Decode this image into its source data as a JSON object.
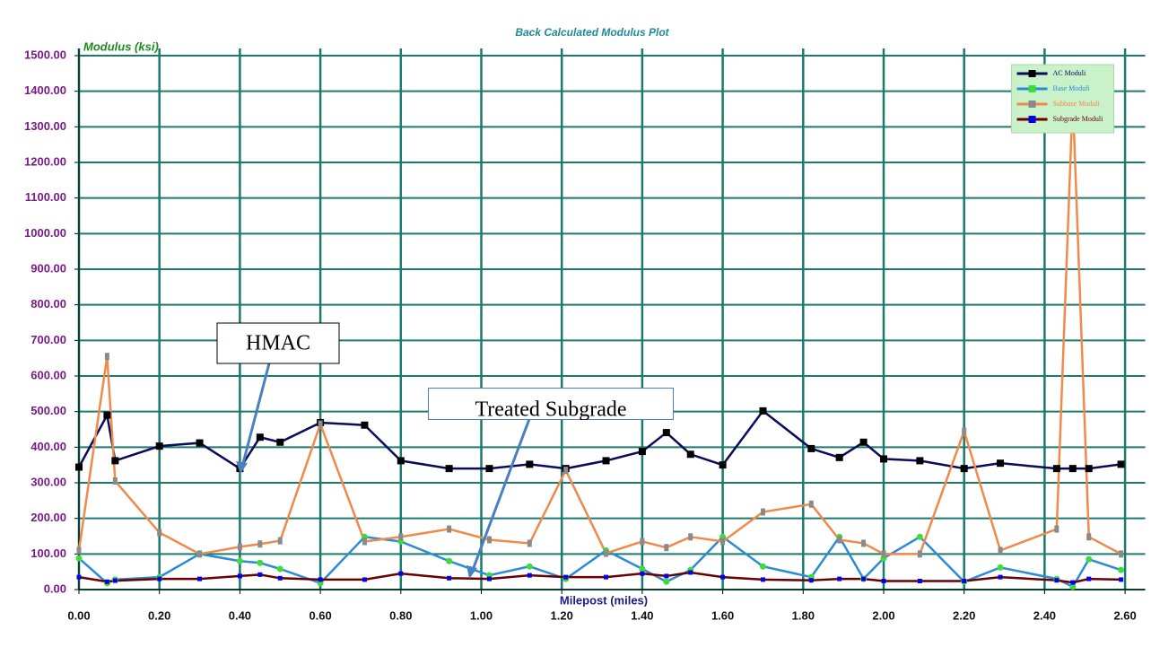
{
  "chart_data": {
    "type": "line",
    "title": "Back Calculated Modulus Plot",
    "y_label": "Modulus (ksi)",
    "x_label": "Milepost (miles)",
    "x": [
      0.0,
      0.07,
      0.09,
      0.2,
      0.3,
      0.4,
      0.45,
      0.5,
      0.6,
      0.71,
      0.8,
      0.92,
      1.02,
      1.12,
      1.21,
      1.31,
      1.4,
      1.46,
      1.52,
      1.6,
      1.7,
      1.82,
      1.89,
      1.95,
      2.0,
      2.09,
      2.2,
      2.29,
      2.43,
      2.47,
      2.51,
      2.59
    ],
    "series": [
      {
        "name": "AC Moduli",
        "color": "#0b0b5c",
        "marker_color": "#000000",
        "values": [
          344,
          490,
          362,
          403,
          412,
          340,
          428,
          414,
          469,
          462,
          362,
          340,
          340,
          352,
          340,
          362,
          388,
          441,
          380,
          350,
          502,
          396,
          371,
          414,
          367,
          362,
          340,
          355,
          340,
          340,
          340,
          352
        ]
      },
      {
        "name": "Base Moduli",
        "color": "#2b8bd6",
        "marker_color": "#3ddc3d",
        "values": [
          88,
          18,
          28,
          35,
          100,
          80,
          75,
          58,
          18,
          148,
          135,
          80,
          40,
          65,
          30,
          110,
          58,
          22,
          55,
          148,
          65,
          35,
          148,
          30,
          88,
          148,
          22,
          62,
          30,
          8,
          85,
          55
        ]
      },
      {
        "name": "Subbase Moduli",
        "color": "#f0894a",
        "marker_color": "#8a8a8a",
        "values": [
          110,
          655,
          305,
          160,
          100,
          120,
          128,
          137,
          465,
          135,
          148,
          170,
          140,
          130,
          335,
          102,
          135,
          118,
          148,
          135,
          218,
          240,
          140,
          130,
          100,
          100,
          445,
          110,
          170,
          1380,
          148,
          100
        ]
      },
      {
        "name": "Subgrade Moduli",
        "color": "#6b0000",
        "marker_color": "#0000ee",
        "values": [
          35,
          22,
          25,
          30,
          30,
          38,
          42,
          32,
          28,
          28,
          45,
          32,
          30,
          40,
          35,
          35,
          45,
          38,
          48,
          35,
          28,
          26,
          30,
          30,
          24,
          24,
          24,
          35,
          26,
          20,
          30,
          28
        ]
      }
    ],
    "xlim": [
      0,
      2.65
    ],
    "ylim": [
      0,
      1500
    ],
    "xticks": [
      {
        "value": 0,
        "label": "0.00"
      },
      {
        "value": 0.2,
        "label": "0.20"
      },
      {
        "value": 0.4,
        "label": "0.40"
      },
      {
        "value": 0.6,
        "label": "0.60"
      },
      {
        "value": 0.8,
        "label": "0.80"
      },
      {
        "value": 1.0,
        "label": "1.00"
      },
      {
        "value": 1.2,
        "label": "1.20"
      },
      {
        "value": 1.4,
        "label": "1.40"
      },
      {
        "value": 1.6,
        "label": "1.60"
      },
      {
        "value": 1.8,
        "label": "1.80"
      },
      {
        "value": 2.0,
        "label": "2.00"
      },
      {
        "value": 2.2,
        "label": "2.20"
      },
      {
        "value": 2.4,
        "label": "2.40"
      },
      {
        "value": 2.6,
        "label": "2.60"
      }
    ],
    "yticks": [
      {
        "value": 0,
        "label": "0.00"
      },
      {
        "value": 100,
        "label": "100.00"
      },
      {
        "value": 200,
        "label": "200.00"
      },
      {
        "value": 300,
        "label": "300.00"
      },
      {
        "value": 400,
        "label": "400.00"
      },
      {
        "value": 500,
        "label": "500.00"
      },
      {
        "value": 600,
        "label": "600.00"
      },
      {
        "value": 700,
        "label": "700.00"
      },
      {
        "value": 800,
        "label": "800.00"
      },
      {
        "value": 900,
        "label": "900.00"
      },
      {
        "value": 1000,
        "label": "1000.00"
      },
      {
        "value": 1100,
        "label": "1100.00"
      },
      {
        "value": 1200,
        "label": "1200.00"
      },
      {
        "value": 1300,
        "label": "1300.00"
      },
      {
        "value": 1400,
        "label": "1400.00"
      },
      {
        "value": 1500,
        "label": "1500.00"
      }
    ],
    "grid": true,
    "legend": "upper right",
    "annotations": [
      {
        "text": "HMAC"
      },
      {
        "text": "Treated Subgrade"
      }
    ]
  }
}
